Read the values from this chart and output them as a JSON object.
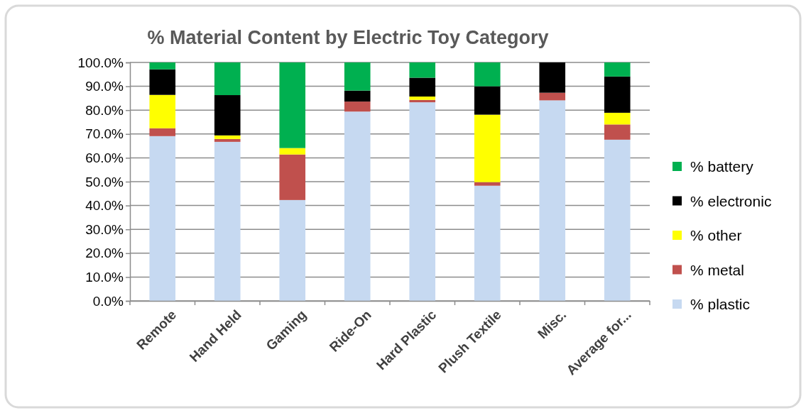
{
  "chart_data": {
    "type": "bar",
    "title": "% Material Content by Electric Toy Category",
    "stacked": true,
    "categories": [
      "Remote",
      "Hand Held",
      "Gaming",
      "Ride-On",
      "Hard Plastic",
      "Plush Textile",
      "Misc.",
      "Average for..."
    ],
    "series": [
      {
        "name": "% plastic",
        "color": "#c6d9f1",
        "values": [
          69.1,
          66.7,
          42.3,
          79.4,
          83.3,
          48.3,
          84.1,
          67.6
        ]
      },
      {
        "name": "% metal",
        "color": "#c0504d",
        "values": [
          3.3,
          1.2,
          19.1,
          4.2,
          1.0,
          1.5,
          3.2,
          6.4
        ]
      },
      {
        "name": "% other",
        "color": "#ffff00",
        "values": [
          14.0,
          1.5,
          2.7,
          0,
          1.4,
          28.3,
          0,
          4.9
        ]
      },
      {
        "name": "% electronic",
        "color": "#000000",
        "values": [
          10.7,
          16.9,
          0,
          4.6,
          7.9,
          11.9,
          12.7,
          15.2
        ]
      },
      {
        "name": "% battery",
        "color": "#00b050",
        "values": [
          2.9,
          13.7,
          35.9,
          11.8,
          6.4,
          10.0,
          0,
          5.9
        ]
      }
    ],
    "ylim": [
      0,
      100
    ],
    "yticks": [
      {
        "value": 0,
        "label": "0.0%"
      },
      {
        "value": 10,
        "label": "10.0%"
      },
      {
        "value": 20,
        "label": "20.0%"
      },
      {
        "value": 30,
        "label": "30.0%"
      },
      {
        "value": 40,
        "label": "40.0%"
      },
      {
        "value": 50,
        "label": "50.0%"
      },
      {
        "value": 60,
        "label": "60.0%"
      },
      {
        "value": 70,
        "label": "70.0%"
      },
      {
        "value": 80,
        "label": "80.0%"
      },
      {
        "value": 90,
        "label": "90.0%"
      },
      {
        "value": 100,
        "label": "100.0%"
      }
    ],
    "grid": "y",
    "legend": "right"
  }
}
